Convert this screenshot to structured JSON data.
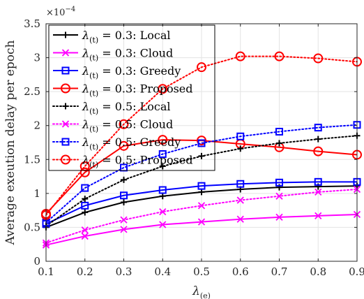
{
  "chart_data": {
    "type": "line",
    "xlabel": "λ(e)",
    "ylabel": "Average exeution delay per epoch",
    "exponent_label": "×10−4",
    "x": [
      0.1,
      0.2,
      0.3,
      0.4,
      0.5,
      0.6,
      0.7,
      0.8,
      0.9
    ],
    "xlim": [
      0.1,
      0.9
    ],
    "ylim": [
      0,
      3.5
    ],
    "xticks": [
      "0.1",
      "0.2",
      "0.3",
      "0.4",
      "0.5",
      "0.6",
      "0.7",
      "0.8",
      "0.9"
    ],
    "yticks": [
      "0",
      "0.5",
      "1",
      "1.5",
      "2",
      "2.5",
      "3",
      "3.5"
    ],
    "grid": true,
    "legend_position": "top-left",
    "series": [
      {
        "name": "λ(t) = 0.3: Local",
        "color": "#000000",
        "marker": "plus",
        "dash": "solid",
        "values": [
          0.5,
          0.72,
          0.87,
          0.96,
          1.02,
          1.06,
          1.09,
          1.1,
          1.11
        ]
      },
      {
        "name": "λ(t) = 0.3: Cloud",
        "color": "#ff00ff",
        "marker": "x",
        "dash": "solid",
        "values": [
          0.24,
          0.37,
          0.47,
          0.54,
          0.58,
          0.62,
          0.65,
          0.67,
          0.69
        ]
      },
      {
        "name": "λ(t) = 0.3: Greedy",
        "color": "#0000ff",
        "marker": "square",
        "dash": "solid",
        "values": [
          0.55,
          0.82,
          0.97,
          1.05,
          1.11,
          1.14,
          1.16,
          1.17,
          1.17
        ]
      },
      {
        "name": "λ(t) = 0.3: Proposed",
        "color": "#ff0000",
        "marker": "circle",
        "dash": "solid",
        "values": [
          0.7,
          1.31,
          1.7,
          1.79,
          1.78,
          1.73,
          1.68,
          1.62,
          1.57
        ]
      },
      {
        "name": "λ(t) = 0.5: Local",
        "color": "#000000",
        "marker": "plus",
        "dash": "dotted",
        "values": [
          0.52,
          0.92,
          1.2,
          1.4,
          1.55,
          1.66,
          1.74,
          1.8,
          1.85
        ]
      },
      {
        "name": "λ(t) = 0.5: Cloud",
        "color": "#ff00ff",
        "marker": "x",
        "dash": "dotted",
        "values": [
          0.27,
          0.46,
          0.61,
          0.73,
          0.82,
          0.9,
          0.96,
          1.02,
          1.06
        ]
      },
      {
        "name": "λ(t) = 0.5: Greedy",
        "color": "#0000ff",
        "marker": "square",
        "dash": "dotted",
        "values": [
          0.57,
          1.08,
          1.38,
          1.58,
          1.74,
          1.84,
          1.91,
          1.97,
          2.01
        ]
      },
      {
        "name": "λ(t) = 0.5: Proposed",
        "color": "#ff0000",
        "marker": "circle",
        "dash": "dotted",
        "values": [
          0.68,
          1.4,
          2.02,
          2.54,
          2.86,
          3.02,
          3.02,
          2.99,
          2.94
        ]
      }
    ],
    "legend_items": [
      {
        "sym": "λ",
        "sub": "(t)",
        "rest": " = 0.3:  Local"
      },
      {
        "sym": "λ",
        "sub": "(t)",
        "rest": " = 0.3:  Cloud"
      },
      {
        "sym": "λ",
        "sub": "(t)",
        "rest": " = 0.3:  Greedy"
      },
      {
        "sym": "λ",
        "sub": "(t)",
        "rest": " = 0.3:  Proposed"
      },
      {
        "sym": "λ",
        "sub": "(t)",
        "rest": " = 0.5:  Local"
      },
      {
        "sym": "λ",
        "sub": "(t)",
        "rest": " = 0.5:  Cloud"
      },
      {
        "sym": "λ",
        "sub": "(t)",
        "rest": " = 0.5:  Greedy"
      },
      {
        "sym": "λ",
        "sub": "(t)",
        "rest": " = 0.5:  Proposed"
      }
    ]
  }
}
